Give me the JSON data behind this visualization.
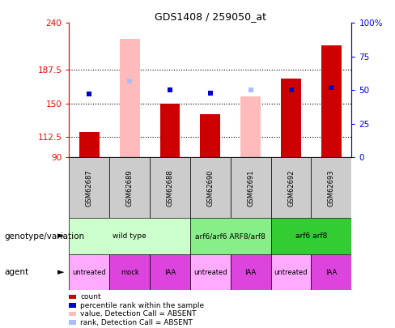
{
  "title": "GDS1408 / 259050_at",
  "samples": [
    "GSM62687",
    "GSM62689",
    "GSM62688",
    "GSM62690",
    "GSM62691",
    "GSM62692",
    "GSM62693"
  ],
  "ylim": [
    90,
    240
  ],
  "yticks": [
    90,
    112.5,
    150,
    187.5,
    240
  ],
  "ytick_labels": [
    "90",
    "112.5",
    "150",
    "187.5",
    "240"
  ],
  "y2lim": [
    0,
    100
  ],
  "y2ticks": [
    0,
    25,
    50,
    75,
    100
  ],
  "y2tick_labels": [
    "0",
    "25",
    "50",
    "75",
    "100%"
  ],
  "count_bars": {
    "values": [
      118,
      null,
      150,
      138,
      null,
      178,
      215
    ],
    "color": "#cc0000"
  },
  "rank_squares": {
    "values": [
      47,
      null,
      50,
      48,
      null,
      50,
      52
    ],
    "color": "#0000cc"
  },
  "absent_value_bars": {
    "indices": [
      1,
      4
    ],
    "values": [
      222,
      158
    ],
    "color": "#ffbbbb"
  },
  "absent_rank_squares": {
    "indices": [
      1,
      4
    ],
    "values": [
      57,
      50
    ],
    "color": "#aabbff"
  },
  "genotype_groups": [
    {
      "label": "wild type",
      "start": 0,
      "end": 2,
      "color": "#ccffcc"
    },
    {
      "label": "arf6/arf6 ARF8/arf8",
      "start": 3,
      "end": 4,
      "color": "#88ee88"
    },
    {
      "label": "arf6 arf8",
      "start": 5,
      "end": 6,
      "color": "#33cc33"
    }
  ],
  "agent_labels": [
    "untreated",
    "mock",
    "IAA",
    "untreated",
    "IAA",
    "untreated",
    "IAA"
  ],
  "agent_colors": [
    "#ffaaff",
    "#dd44dd",
    "#dd44dd",
    "#ffaaff",
    "#dd44dd",
    "#ffaaff",
    "#dd44dd"
  ],
  "legend_items": [
    {
      "label": "count",
      "color": "#cc0000"
    },
    {
      "label": "percentile rank within the sample",
      "color": "#0000cc"
    },
    {
      "label": "value, Detection Call = ABSENT",
      "color": "#ffbbbb"
    },
    {
      "label": "rank, Detection Call = ABSENT",
      "color": "#aabbff"
    }
  ],
  "row_label_genotype": "genotype/variation",
  "row_label_agent": "agent",
  "bar_width": 0.5,
  "sample_col_color": "#cccccc",
  "fig_bg": "#ffffff"
}
